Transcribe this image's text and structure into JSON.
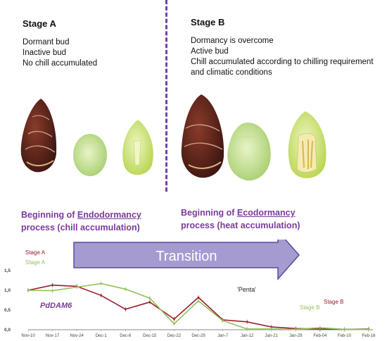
{
  "stage_a": {
    "title": "Stage A",
    "lines": [
      "Dormant bud",
      "Inactive bud",
      "No chill accumulated"
    ]
  },
  "stage_b": {
    "title": "Stage B",
    "lines": [
      "Dormancy is overcome",
      "Active bud",
      "Chill accumulated according to chilling requirement",
      "and climatic conditions"
    ]
  },
  "phases": {
    "endo": {
      "line1_pre": "Beginning of ",
      "line1_ul": "Endodormancy",
      "line2": "process (chill accumulation)"
    },
    "eco": {
      "line1_pre": "Beginning of ",
      "line1_ul": "Ecodormancy",
      "line2": "process (heat accumulation)"
    }
  },
  "arrow": {
    "label": "Transition",
    "color": "#a59bd0"
  },
  "colors": {
    "stage_a": "#9b1c2c",
    "stage_b": "#8fc25a",
    "accent": "#7b3a9c"
  },
  "chart_data": {
    "type": "line",
    "gene_label": "PdDAM6",
    "variety_label": "'Penta'",
    "x": [
      "Nov-10",
      "Nov-17",
      "Nov-24",
      "Dec-1",
      "Dec-8",
      "Dec-15",
      "Dec-22",
      "Dec-29",
      "Jan-7",
      "Jan-12",
      "Jan-21",
      "Jan-29",
      "Feb-04",
      "Feb-10",
      "Feb-16"
    ],
    "yticks": [
      "0,0",
      "0,5",
      "1,0",
      "1,5"
    ],
    "ylim": [
      0,
      1.5
    ],
    "series": [
      {
        "name": "Stage A",
        "color": "#9b1c2c",
        "values": [
          1.0,
          1.13,
          1.1,
          0.87,
          0.52,
          0.7,
          0.27,
          0.82,
          0.25,
          0.2,
          0.07,
          0.03,
          0.02,
          0.01,
          0.02
        ]
      },
      {
        "name": "Stage A",
        "color": "#8fc25a",
        "values": [
          1.0,
          0.99,
          1.08,
          1.17,
          1.03,
          0.8,
          0.15,
          0.73,
          0.23,
          0.02,
          0.02,
          0.01,
          0.05,
          0.01,
          0.01
        ]
      }
    ],
    "end_labels": [
      {
        "name": "Stage B",
        "color": "#9b1c2c"
      },
      {
        "name": "Stage B",
        "color": "#8fc25a"
      }
    ]
  }
}
